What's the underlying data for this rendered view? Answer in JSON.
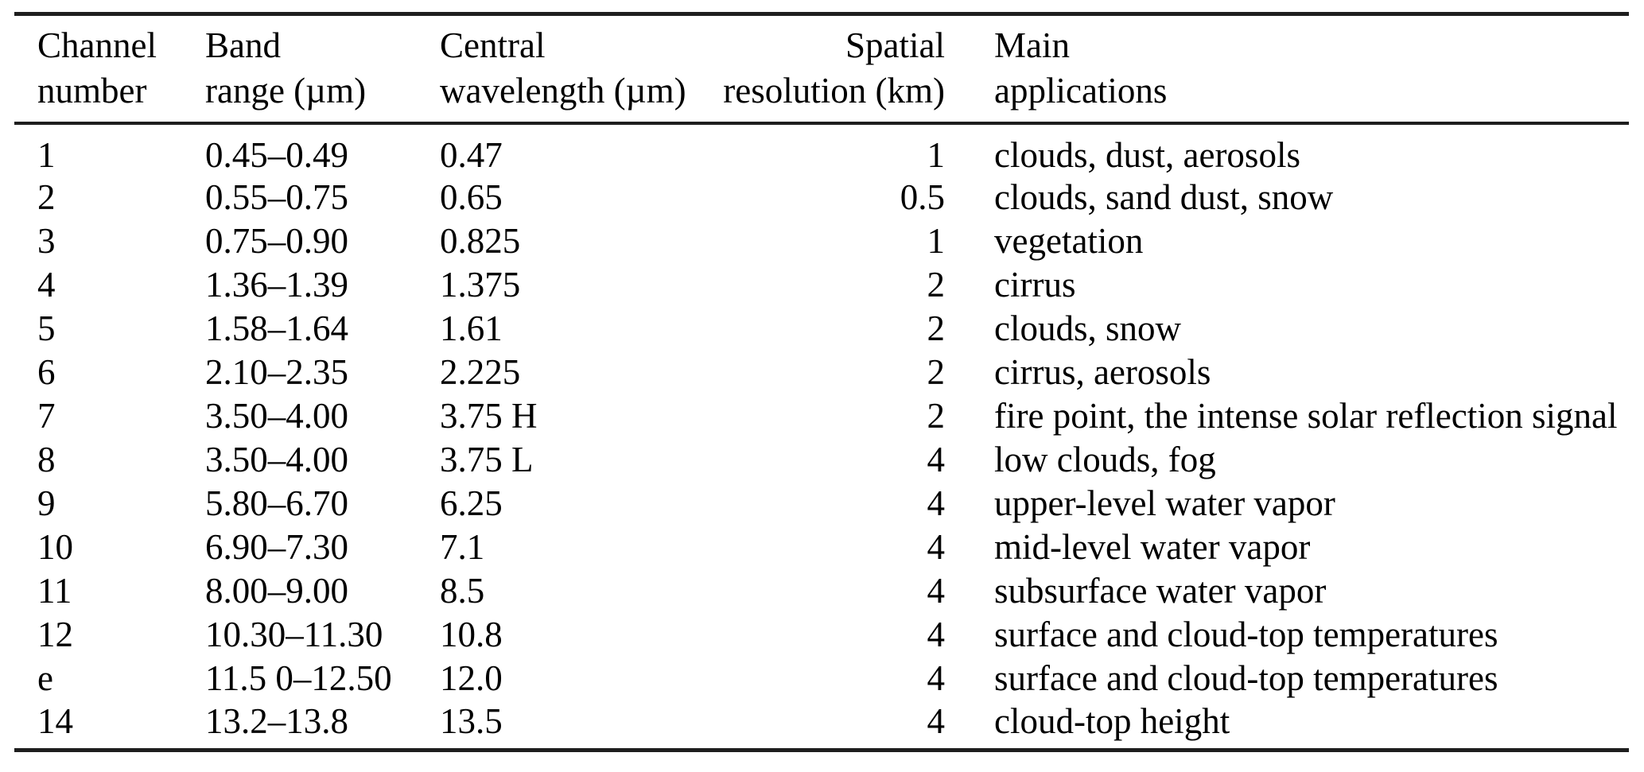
{
  "colors": {
    "ink": "#000000",
    "rule": "#1e1e1e",
    "bg": "#ffffff"
  },
  "table": {
    "columns": [
      {
        "id": "channel-number",
        "label_line1": "Channel",
        "label_line2": "number",
        "align": "left"
      },
      {
        "id": "band-range",
        "label_line1": "Band",
        "label_line2": "range (µm)",
        "align": "left"
      },
      {
        "id": "central-wavelength",
        "label_line1": "Central",
        "label_line2": "wavelength (µm)",
        "align": "left"
      },
      {
        "id": "spatial-resolution",
        "label_line1": "Spatial",
        "label_line2": "resolution (km)",
        "align": "right"
      },
      {
        "id": "main-applications",
        "label_line1": "Main",
        "label_line2": "applications",
        "align": "left"
      }
    ],
    "rows": [
      [
        "1",
        "0.45–0.49",
        "0.47",
        "1",
        "clouds, dust, aerosols"
      ],
      [
        "2",
        "0.55–0.75",
        "0.65",
        "0.5",
        "clouds, sand dust, snow"
      ],
      [
        "3",
        "0.75–0.90",
        "0.825",
        "1",
        "vegetation"
      ],
      [
        "4",
        "1.36–1.39",
        "1.375",
        "2",
        "cirrus"
      ],
      [
        "5",
        "1.58–1.64",
        "1.61",
        "2",
        "clouds, snow"
      ],
      [
        "6",
        "2.10–2.35",
        "2.225",
        "2",
        "cirrus, aerosols"
      ],
      [
        "7",
        "3.50–4.00",
        "3.75 H",
        "2",
        "fire point, the intense solar reflection signal"
      ],
      [
        "8",
        "3.50–4.00",
        "3.75 L",
        "4",
        "low clouds, fog"
      ],
      [
        "9",
        "5.80–6.70",
        "6.25",
        "4",
        "upper-level water vapor"
      ],
      [
        "10",
        "6.90–7.30",
        "7.1",
        "4",
        "mid-level water vapor"
      ],
      [
        "11",
        "8.00–9.00",
        "8.5",
        "4",
        "subsurface water vapor"
      ],
      [
        "12",
        "10.30–11.30",
        "10.8",
        "4",
        "surface and cloud-top temperatures"
      ],
      [
        "e",
        "11.5 0–12.50",
        "12.0",
        "4",
        "surface and cloud-top temperatures"
      ],
      [
        "14",
        "13.2–13.8",
        "13.5",
        "4",
        "cloud-top height"
      ]
    ]
  }
}
